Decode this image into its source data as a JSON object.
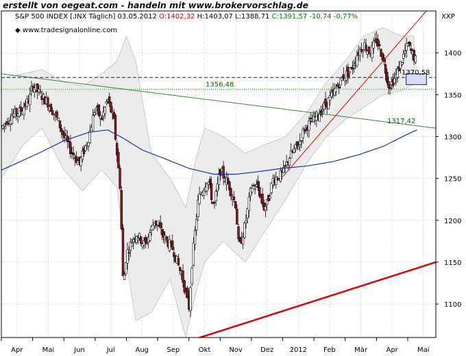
{
  "banner": "erstellt von oegeat.com - handeln mit www.brokervorschlag.de",
  "header": {
    "name": "S&P 500 INDEX [.INX  Täglich]",
    "date": "03.05.2012",
    "open": "O:1402,32",
    "high": "H:1403,07",
    "low": "L:1388,71",
    "close": "C:1391,57",
    "change": "-10,74",
    "change_pct": "-0,77%"
  },
  "watermark": "www.tradesignalonline.com",
  "symbol": "XXP",
  "colors": {
    "candle_up": "#ffffff",
    "candle_down": "#8b1a1a",
    "ma": "#1a2fb0",
    "trend_red": "#e00000",
    "trend_green": "#2e8b2e",
    "band_fill": "#ececec",
    "grid": "#c8c8c8",
    "level_box": "#d8dcf8"
  },
  "chart_data": {
    "type": "candlestick",
    "x_labels": [
      "Apr",
      "Mai",
      "Jun",
      "Jul",
      "Aug",
      "Sep",
      "Okt",
      "Nov",
      "Dez",
      "2012",
      "Feb",
      "Mär",
      "Apr",
      "Mai"
    ],
    "y_ticks": [
      1100,
      1150,
      1200,
      1250,
      1300,
      1350,
      1400
    ],
    "ylim": [
      1060,
      1450
    ],
    "xlim": [
      0,
      13.9
    ],
    "grid": true,
    "levels": [
      {
        "label": "1356,48",
        "value": 1356.48,
        "style": "dotted-green"
      },
      {
        "label": "1370,58",
        "value": 1370.58,
        "style": "dashed-navy"
      },
      {
        "label": "1317,42",
        "value": 1317.42,
        "style": "green-trend"
      }
    ],
    "close_path": [
      [
        0.0,
        1310
      ],
      [
        0.3,
        1325
      ],
      [
        0.6,
        1330
      ],
      [
        0.9,
        1345
      ],
      [
        1.0,
        1362
      ],
      [
        1.2,
        1352
      ],
      [
        1.5,
        1340
      ],
      [
        1.8,
        1320
      ],
      [
        2.0,
        1300
      ],
      [
        2.2,
        1285
      ],
      [
        2.5,
        1268
      ],
      [
        2.8,
        1300
      ],
      [
        3.0,
        1335
      ],
      [
        3.2,
        1320
      ],
      [
        3.4,
        1345
      ],
      [
        3.6,
        1318
      ],
      [
        3.8,
        1240
      ],
      [
        3.9,
        1120
      ],
      [
        4.0,
        1160
      ],
      [
        4.3,
        1185
      ],
      [
        4.6,
        1170
      ],
      [
        4.9,
        1200
      ],
      [
        5.2,
        1180
      ],
      [
        5.5,
        1165
      ],
      [
        5.8,
        1130
      ],
      [
        6.0,
        1095
      ],
      [
        6.1,
        1150
      ],
      [
        6.3,
        1225
      ],
      [
        6.6,
        1250
      ],
      [
        6.8,
        1215
      ],
      [
        7.0,
        1260
      ],
      [
        7.3,
        1240
      ],
      [
        7.5,
        1218
      ],
      [
        7.6,
        1165
      ],
      [
        7.8,
        1195
      ],
      [
        8.0,
        1240
      ],
      [
        8.2,
        1240
      ],
      [
        8.4,
        1215
      ],
      [
        8.5,
        1220
      ],
      [
        8.7,
        1250
      ],
      [
        9.0,
        1255
      ],
      [
        9.2,
        1275
      ],
      [
        9.5,
        1290
      ],
      [
        9.7,
        1310
      ],
      [
        10.0,
        1320
      ],
      [
        10.3,
        1335
      ],
      [
        10.6,
        1350
      ],
      [
        10.9,
        1370
      ],
      [
        11.2,
        1380
      ],
      [
        11.4,
        1400
      ],
      [
        11.6,
        1410
      ],
      [
        11.8,
        1400
      ],
      [
        12.0,
        1415
      ],
      [
        12.2,
        1395
      ],
      [
        12.4,
        1360
      ],
      [
        12.6,
        1370
      ],
      [
        12.8,
        1390
      ],
      [
        13.0,
        1410
      ],
      [
        13.1,
        1402
      ],
      [
        13.25,
        1391.57
      ]
    ],
    "moving_average": [
      [
        0.0,
        1260
      ],
      [
        0.6,
        1270
      ],
      [
        1.3,
        1282
      ],
      [
        2.0,
        1295
      ],
      [
        2.8,
        1305
      ],
      [
        3.4,
        1308
      ],
      [
        3.9,
        1298
      ],
      [
        4.5,
        1284
      ],
      [
        5.2,
        1274
      ],
      [
        6.0,
        1262
      ],
      [
        6.8,
        1255
      ],
      [
        7.5,
        1255
      ],
      [
        8.2,
        1258
      ],
      [
        9.0,
        1262
      ],
      [
        9.8,
        1265
      ],
      [
        10.6,
        1270
      ],
      [
        11.4,
        1278
      ],
      [
        12.2,
        1288
      ],
      [
        13.0,
        1303
      ],
      [
        13.3,
        1308
      ]
    ],
    "band_upper": [
      [
        0.0,
        1370
      ],
      [
        0.7,
        1375
      ],
      [
        1.3,
        1380
      ],
      [
        2.0,
        1365
      ],
      [
        2.6,
        1360
      ],
      [
        3.2,
        1375
      ],
      [
        3.7,
        1390
      ],
      [
        4.0,
        1420
      ],
      [
        4.3,
        1390
      ],
      [
        4.8,
        1280
      ],
      [
        5.4,
        1250
      ],
      [
        5.9,
        1215
      ],
      [
        6.2,
        1270
      ],
      [
        6.5,
        1310
      ],
      [
        7.1,
        1300
      ],
      [
        7.8,
        1280
      ],
      [
        8.4,
        1290
      ],
      [
        9.1,
        1300
      ],
      [
        9.8,
        1330
      ],
      [
        10.4,
        1365
      ],
      [
        11.0,
        1390
      ],
      [
        11.6,
        1420
      ],
      [
        12.2,
        1430
      ],
      [
        12.8,
        1420
      ],
      [
        13.2,
        1420
      ]
    ],
    "band_lower": [
      [
        0.0,
        1250
      ],
      [
        0.7,
        1290
      ],
      [
        1.3,
        1310
      ],
      [
        2.0,
        1260
      ],
      [
        2.6,
        1235
      ],
      [
        3.2,
        1260
      ],
      [
        3.7,
        1240
      ],
      [
        4.0,
        1150
      ],
      [
        4.3,
        1080
      ],
      [
        4.8,
        1090
      ],
      [
        5.4,
        1130
      ],
      [
        5.9,
        1060
      ],
      [
        6.2,
        1110
      ],
      [
        6.5,
        1150
      ],
      [
        7.1,
        1175
      ],
      [
        7.8,
        1150
      ],
      [
        8.4,
        1185
      ],
      [
        9.1,
        1225
      ],
      [
        9.8,
        1270
      ],
      [
        10.4,
        1300
      ],
      [
        11.0,
        1320
      ],
      [
        11.6,
        1335
      ],
      [
        12.2,
        1350
      ],
      [
        12.8,
        1355
      ],
      [
        13.2,
        1362
      ]
    ],
    "trendlines": [
      {
        "name": "lower-red",
        "from": [
          3.0,
          1020
        ],
        "to": [
          13.9,
          1150
        ],
        "color": "#e00000",
        "width": 2.5
      },
      {
        "name": "rising-red",
        "from": [
          9.0,
          1252
        ],
        "to": [
          13.9,
          1463
        ],
        "color": "#e00000",
        "width": 1
      },
      {
        "name": "falling-green",
        "from": [
          0.0,
          1375
        ],
        "to": [
          13.9,
          1310
        ],
        "color": "#2e8b2e",
        "width": 1
      }
    ],
    "boxes": [
      {
        "name": "box-1370",
        "x0": 12.95,
        "x1": 13.6,
        "y0": 1362,
        "y1": 1375
      },
      {
        "name": "box-1317",
        "x0": 13.9,
        "x1": 14.6,
        "y0": 1310,
        "y1": 1330
      }
    ]
  }
}
